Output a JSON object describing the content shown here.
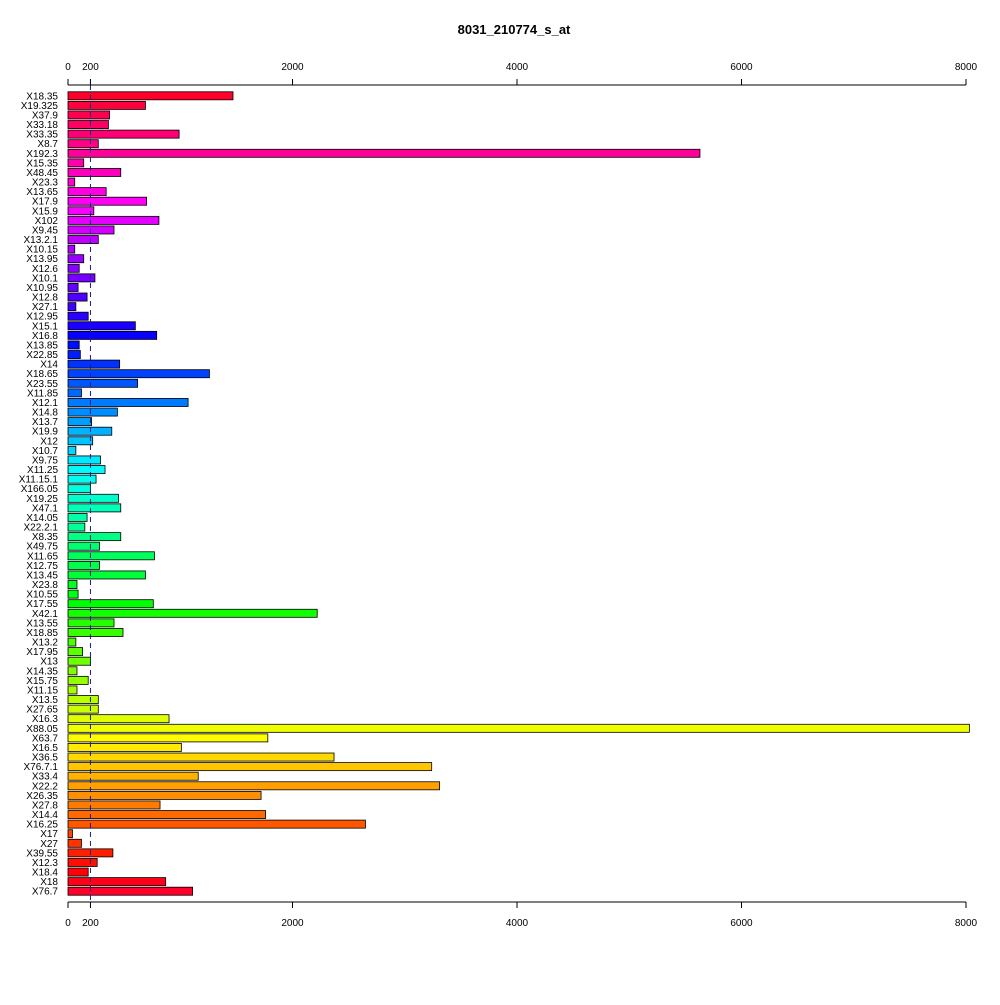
{
  "chart_data": {
    "type": "bar",
    "orientation": "horizontal",
    "title": "8031_210774_s_at",
    "xlabel": "",
    "ylabel": "",
    "xlim": [
      0,
      8000
    ],
    "x_ticks": [
      "0",
      "200",
      "2000",
      "4000",
      "6000",
      "8000"
    ],
    "tick_values": [
      0,
      200,
      2000,
      4000,
      6000,
      8000
    ],
    "reference_line": 200,
    "grid": false,
    "legend": "none",
    "categories": [
      "X18.35",
      "X19.325",
      "X37.9",
      "X33.18",
      "X33.35",
      "X8.7",
      "X192.3",
      "X15.35",
      "X48.45",
      "X23.3",
      "X13.65",
      "X17.9",
      "X15.9",
      "X102",
      "X9.45",
      "X13.2.1",
      "X10.15",
      "X13.95",
      "X12.6",
      "X10.1",
      "X10.95",
      "X12.8",
      "X27.1",
      "X12.95",
      "X15.1",
      "X16.8",
      "X13.85",
      "X22.85",
      "X14",
      "X18.65",
      "X23.55",
      "X11.85",
      "X12.1",
      "X14.8",
      "X13.7",
      "X19.9",
      "X12",
      "X10.7",
      "X9.75",
      "X11.25",
      "X11.15.1",
      "X166.05",
      "X19.25",
      "X47.1",
      "X14.05",
      "X22.2.1",
      "X8.35",
      "X49.75",
      "X11.65",
      "X12.75",
      "X13.45",
      "X23.8",
      "X10.55",
      "X17.55",
      "X42.1",
      "X13.55",
      "X18.85",
      "X13.2",
      "X17.95",
      "X13",
      "X14.35",
      "X15.75",
      "X11.15",
      "X13.5",
      "X27.65",
      "X16.3",
      "X88.05",
      "X63.7",
      "X16.5",
      "X36.5",
      "X76.7.1",
      "X33.4",
      "X22.2",
      "X26.35",
      "X27.8",
      "X14.4",
      "X16.25",
      "X17",
      "X27",
      "X39.55",
      "X12.3",
      "X18.4",
      "X18",
      "X76.7"
    ],
    "values": [
      1470,
      690,
      370,
      360,
      990,
      270,
      5630,
      140,
      470,
      60,
      340,
      700,
      230,
      810,
      410,
      270,
      60,
      140,
      100,
      240,
      90,
      170,
      70,
      180,
      600,
      790,
      100,
      110,
      460,
      1260,
      620,
      120,
      1070,
      440,
      210,
      390,
      220,
      70,
      290,
      330,
      250,
      200,
      450,
      470,
      170,
      150,
      470,
      280,
      770,
      280,
      690,
      80,
      90,
      760,
      2220,
      410,
      490,
      70,
      130,
      200,
      80,
      180,
      80,
      270,
      270,
      900,
      8030,
      1780,
      1010,
      2370,
      3240,
      1160,
      3310,
      1720,
      820,
      1760,
      2650,
      40,
      120,
      400,
      260,
      180,
      870,
      1110
    ]
  }
}
